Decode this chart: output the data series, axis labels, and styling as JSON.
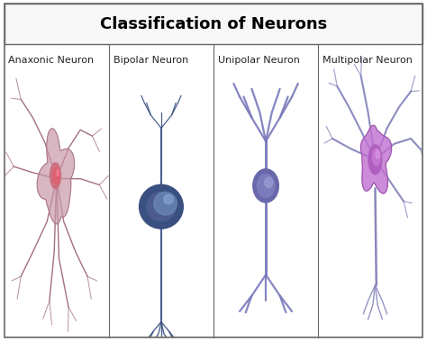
{
  "title": "Classification of Neurons",
  "title_fontsize": 13,
  "title_fontweight": "bold",
  "neuron_labels": [
    "Anaxonic Neuron",
    "Bipolar Neuron",
    "Unipolar Neuron",
    "Multipolar Neuron"
  ],
  "label_fontsize": 8,
  "background_color": "#ffffff",
  "border_color": "#888888",
  "title_bar_height": 0.12,
  "anaxonic_body_color": "#d08090",
  "anaxonic_dendrite_color": "#9a6070",
  "bipolar_body_color": "#3a5080",
  "bipolar_axon_color": "#4a6090",
  "unipolar_body_color": "#6868aa",
  "unipolar_axon_color": "#7878bb",
  "multipolar_body_color": "#a060b0",
  "multipolar_dendrite_color": "#8080bb"
}
